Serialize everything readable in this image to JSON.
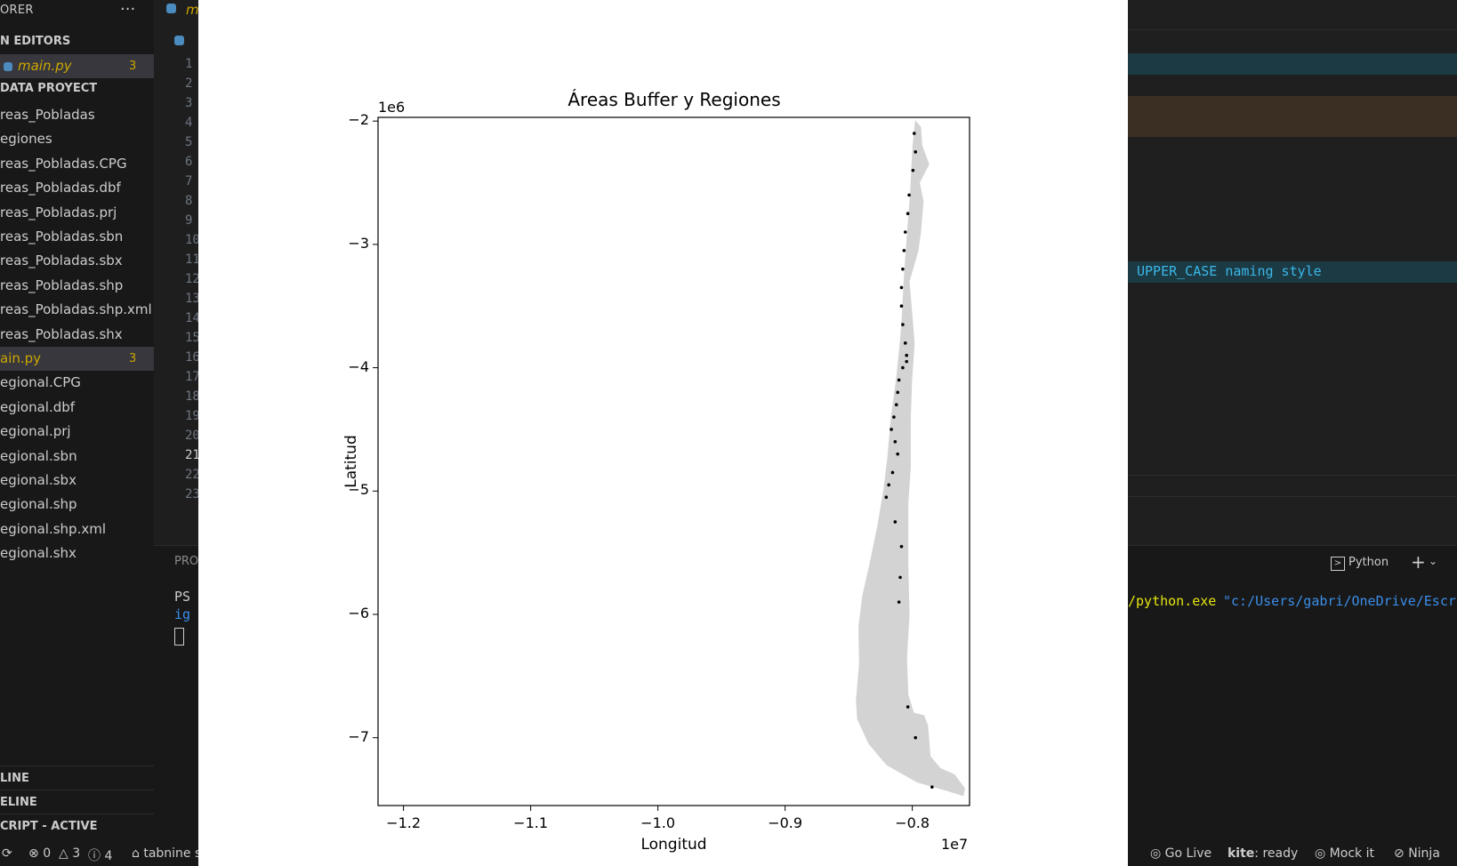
{
  "explorer": {
    "title": "ORER",
    "more_icon": "ellipsis-icon",
    "open_editors": "N EDITORS",
    "open_file": {
      "name": "main.py",
      "badge": "3"
    },
    "project": "DATA PROYECT",
    "files": [
      {
        "name": "reas_Pobladas"
      },
      {
        "name": "egiones"
      },
      {
        "name": "reas_Pobladas.CPG"
      },
      {
        "name": "reas_Pobladas.dbf"
      },
      {
        "name": "reas_Pobladas.prj"
      },
      {
        "name": "reas_Pobladas.sbn"
      },
      {
        "name": "reas_Pobladas.sbx"
      },
      {
        "name": "reas_Pobladas.shp"
      },
      {
        "name": "reas_Pobladas.shp.xml"
      },
      {
        "name": "reas_Pobladas.shx"
      },
      {
        "name": "ain.py",
        "badge": "3"
      },
      {
        "name": "egional.CPG"
      },
      {
        "name": "egional.dbf"
      },
      {
        "name": "egional.prj"
      },
      {
        "name": "egional.sbn"
      },
      {
        "name": "egional.sbx"
      },
      {
        "name": "egional.shp"
      },
      {
        "name": "egional.shp.xml"
      },
      {
        "name": "egional.shx"
      }
    ],
    "bottom_sections": [
      "LINE",
      "ELINE",
      "CRIPT - ACTIVE"
    ]
  },
  "editor": {
    "tab_label": "m",
    "line_numbers": [
      "1",
      "2",
      "3",
      "4",
      "5",
      "6",
      "7",
      "8",
      "9",
      "10",
      "11",
      "12",
      "13",
      "14",
      "15",
      "16",
      "17",
      "18",
      "19",
      "20",
      "21",
      "22",
      "23"
    ],
    "current_line": "21",
    "hint_text": "UPPER_CASE naming style"
  },
  "terminal": {
    "panel_label": "PRO",
    "prompt": "PS",
    "line2": "ig",
    "right_path_1": "/python.exe",
    "right_path_2": "\"c:/Users/gabri/OneDrive/Escr",
    "profile_label": "Python",
    "add_icon": "plus-icon",
    "dropdown_icon": "chevron-down-icon"
  },
  "status": {
    "sync_icon": "sync-icon",
    "errors": "0",
    "warnings": "3",
    "infos": "4",
    "tabnine": "tabnine s",
    "go_live": "Go Live",
    "kite_label": "kite",
    "kite_status": ": ready",
    "mock": "Mock it",
    "ninja": "Ninja"
  },
  "chart_data": {
    "type": "map",
    "title": "Áreas Buffer y Regiones",
    "xlabel": "Longitud",
    "ylabel": "Latitud",
    "x_offset_label": "1e7",
    "y_offset_label": "1e6",
    "xlim": [
      -1.22,
      -0.755
    ],
    "ylim": [
      -7.55,
      -1.97
    ],
    "xticks": [
      -1.2,
      -1.1,
      -1.0,
      -0.9,
      -0.8
    ],
    "xtick_labels": [
      "−1.2",
      "−1.1",
      "−1.0",
      "−0.9",
      "−0.8"
    ],
    "yticks": [
      -2,
      -3,
      -4,
      -5,
      -6,
      -7
    ],
    "ytick_labels": [
      "−2",
      "−3",
      "−4",
      "−5",
      "−6",
      "−7"
    ],
    "colors": {
      "regions": "#d3d3d3",
      "buffers": "#000000"
    },
    "region_outline": [
      [
        -0.7975,
        -2.0
      ],
      [
        -0.7935,
        -2.05
      ],
      [
        -0.7925,
        -2.2
      ],
      [
        -0.787,
        -2.35
      ],
      [
        -0.7945,
        -2.5
      ],
      [
        -0.7915,
        -2.65
      ],
      [
        -0.7935,
        -2.9
      ],
      [
        -0.7955,
        -3.05
      ],
      [
        -0.8025,
        -3.3
      ],
      [
        -0.8005,
        -3.55
      ],
      [
        -0.7985,
        -3.8
      ],
      [
        -0.8005,
        -4.1
      ],
      [
        -0.8015,
        -4.4
      ],
      [
        -0.8015,
        -4.8
      ],
      [
        -0.8035,
        -5.1
      ],
      [
        -0.8035,
        -5.6
      ],
      [
        -0.8025,
        -6.0
      ],
      [
        -0.8045,
        -6.35
      ],
      [
        -0.8035,
        -6.65
      ],
      [
        -0.799,
        -6.8
      ],
      [
        -0.791,
        -6.82
      ],
      [
        -0.788,
        -6.9
      ],
      [
        -0.786,
        -7.15
      ],
      [
        -0.778,
        -7.25
      ],
      [
        -0.767,
        -7.3
      ],
      [
        -0.759,
        -7.41
      ],
      [
        -0.76,
        -7.47
      ],
      [
        -0.772,
        -7.43
      ],
      [
        -0.796,
        -7.36
      ],
      [
        -0.82,
        -7.22
      ],
      [
        -0.834,
        -7.05
      ],
      [
        -0.843,
        -6.85
      ],
      [
        -0.844,
        -6.7
      ],
      [
        -0.8415,
        -6.4
      ],
      [
        -0.842,
        -6.1
      ],
      [
        -0.839,
        -5.85
      ],
      [
        -0.8335,
        -5.6
      ],
      [
        -0.8275,
        -5.3
      ],
      [
        -0.8225,
        -5.0
      ],
      [
        -0.8195,
        -4.75
      ],
      [
        -0.8165,
        -4.4
      ],
      [
        -0.8125,
        -4.1
      ],
      [
        -0.8095,
        -3.8
      ],
      [
        -0.808,
        -3.6
      ],
      [
        -0.8065,
        -3.3
      ],
      [
        -0.8045,
        -3.0
      ],
      [
        -0.8015,
        -2.6
      ],
      [
        -0.8005,
        -2.4
      ],
      [
        -0.7995,
        -2.2
      ]
    ],
    "buffer_points": [
      [
        -0.7985,
        -2.1
      ],
      [
        -0.7975,
        -2.25
      ],
      [
        -0.7995,
        -2.4
      ],
      [
        -0.8025,
        -2.6
      ],
      [
        -0.8035,
        -2.75
      ],
      [
        -0.8055,
        -2.9
      ],
      [
        -0.8065,
        -3.05
      ],
      [
        -0.8075,
        -3.2
      ],
      [
        -0.8085,
        -3.35
      ],
      [
        -0.8085,
        -3.5
      ],
      [
        -0.8075,
        -3.65
      ],
      [
        -0.8055,
        -3.8
      ],
      [
        -0.8045,
        -3.9
      ],
      [
        -0.8045,
        -3.95
      ],
      [
        -0.8075,
        -4.0
      ],
      [
        -0.8105,
        -4.1
      ],
      [
        -0.8115,
        -4.2
      ],
      [
        -0.8125,
        -4.3
      ],
      [
        -0.8145,
        -4.4
      ],
      [
        -0.8165,
        -4.5
      ],
      [
        -0.8135,
        -4.6
      ],
      [
        -0.8115,
        -4.7
      ],
      [
        -0.8155,
        -4.85
      ],
      [
        -0.8185,
        -4.95
      ],
      [
        -0.8205,
        -5.05
      ],
      [
        -0.8135,
        -5.25
      ],
      [
        -0.8085,
        -5.45
      ],
      [
        -0.8095,
        -5.7
      ],
      [
        -0.8105,
        -5.9
      ],
      [
        -0.8035,
        -6.75
      ],
      [
        -0.7975,
        -7.0
      ],
      [
        -0.7845,
        -7.4
      ]
    ]
  }
}
